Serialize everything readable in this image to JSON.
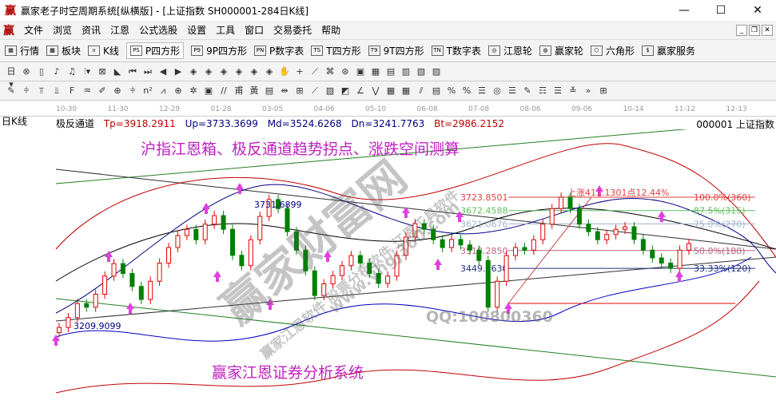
{
  "window": {
    "logo": "赢",
    "title": "赢家老子时空周期系统[纵横版] - [上证指数  SH000001-284日K线]",
    "buttons": [
      "—",
      "☐",
      "✕"
    ]
  },
  "menu": {
    "logo": "赢",
    "items": [
      "文件",
      "浏览",
      "资讯",
      "江恩",
      "公式选股",
      "设置",
      "工具",
      "窗口",
      "交易委托",
      "帮助"
    ],
    "mdi_buttons": [
      "_",
      "❐",
      "✕"
    ]
  },
  "toolbar1": [
    {
      "icon": "grid-icon",
      "glyph": "▦",
      "label": "行情"
    },
    {
      "icon": "blocks-icon",
      "glyph": "▩",
      "label": "板块"
    },
    {
      "icon": "candles-icon",
      "glyph": "ıı",
      "label": "K线"
    },
    {
      "icon": "ps-icon",
      "glyph": "PS",
      "label": "P四方形",
      "selected": true
    },
    {
      "icon": "p9-icon",
      "glyph": "P9",
      "label": "9P四方形"
    },
    {
      "icon": "pn-icon",
      "glyph": "PN",
      "label": "P数字表"
    },
    {
      "icon": "ts-icon",
      "glyph": "TS",
      "label": "T四方形"
    },
    {
      "icon": "t9-icon",
      "glyph": "T9",
      "label": "9T四方形"
    },
    {
      "icon": "tn-icon",
      "glyph": "TN",
      "label": "T数字表"
    },
    {
      "icon": "gann-wheel-icon",
      "glyph": "◎",
      "label": "江恩轮"
    },
    {
      "icon": "win-wheel-icon",
      "glyph": "◍",
      "label": "赢家轮"
    },
    {
      "icon": "hexagon-icon",
      "glyph": "⬡",
      "label": "六角形"
    },
    {
      "icon": "dollar-icon",
      "glyph": "$",
      "label": "赢家服务"
    }
  ],
  "toolbar2": [
    "日▾",
    "⊗",
    "▯",
    "♪",
    "♫",
    "⫶▾",
    "⊠",
    "◣",
    "⏮",
    "⏭",
    "◀",
    "▶",
    "◈",
    "◈",
    "◈",
    "◈",
    "◈",
    "◈",
    "✋",
    "+",
    "⟋",
    "⌘",
    "⊛",
    "▣",
    "▦",
    "▤",
    "▥",
    "▧",
    "▨"
  ],
  "toolbar3": [
    "✎",
    "⫩",
    "⫪",
    "⫫",
    "F",
    "♒",
    "✐",
    "⊕",
    "⫩",
    "n²",
    "⩘",
    "⊕",
    "✲",
    "▣",
    "//",
    "甫",
    "黃",
    "▤",
    "⇹",
    "⊞",
    "⟋",
    "▨",
    "◩",
    "∠",
    "⋁",
    "▦",
    "▦",
    "⫽",
    "▤",
    "%",
    "%",
    "☰",
    "◎",
    "☰",
    "✎",
    "☶",
    "☰",
    "≚",
    "»",
    "⊞"
  ],
  "dates": [
    "10-30",
    "11-30",
    "12-29",
    "01-28",
    "03-05",
    "04-06",
    "05-10",
    "06-08",
    "07-08",
    "08-06",
    "09-06",
    "10-14",
    "11-12",
    "12-13"
  ],
  "chart_header": {
    "period": "日K线",
    "indicator": "极反通道",
    "tp": "Tp=3918.2911",
    "up": "Up=3733.3699",
    "md": "Md=3524.6268",
    "dn": "Dn=3241.7763",
    "bt": "Bt=2986.2152",
    "code": "000001  上证指数"
  },
  "annotations": {
    "headline": "沪指江恩箱、极反通道趋势拐点、涨跌空间测算",
    "footer": "赢家江恩证券分析系统",
    "rise": "上涨411.1301点12.44%",
    "qq": "QQ:100800360",
    "high_label": "3731.6899",
    "low_label": "3209.9099",
    "watermark": "赢家财富网",
    "watermark2": "赢家江恩软件 股票分析软件 江恩工具软件",
    "watermark3": "www.yhgj360.com"
  },
  "colors": {
    "up": "#e00000",
    "down": "#008000",
    "fib_red": "#e04040",
    "fib_green": "#60c060",
    "fib_blue": "#a0b0d0",
    "arrow": "#e040e0",
    "headline": "#c020c0"
  },
  "chart_data": {
    "type": "candlestick",
    "closes": [
      3222,
      3260,
      3314,
      3300,
      3350,
      3420,
      3468,
      3430,
      3380,
      3330,
      3400,
      3470,
      3530,
      3576,
      3600,
      3560,
      3620,
      3653,
      3600,
      3500,
      3460,
      3560,
      3650,
      3715,
      3680,
      3591,
      3520,
      3440,
      3345,
      3390,
      3422,
      3460,
      3499,
      3470,
      3430,
      3392,
      3420,
      3500,
      3570,
      3622,
      3600,
      3560,
      3530,
      3561,
      3540,
      3520,
      3480,
      3300,
      3400,
      3499,
      3530,
      3520,
      3560,
      3620,
      3680,
      3724,
      3680,
      3620,
      3591,
      3560,
      3580,
      3600,
      3610,
      3561,
      3520,
      3490,
      3470,
      3450,
      3520,
      3545
    ],
    "fib_levels": [
      {
        "price": "3723.8501",
        "label": "100.0%(360)",
        "color": "#e04040"
      },
      {
        "price": "3672.4588",
        "label": "87.5%(315)",
        "color": "#60c060"
      },
      {
        "price": "3621.0676",
        "label": "75.0%(270)",
        "color": "#a0b0d0"
      },
      {
        "price": "3518.2850",
        "label": "50.0%(180)",
        "color": "#c06080"
      },
      {
        "price": "3449.7630",
        "label": "33.33%(120)",
        "color": "#203080"
      }
    ],
    "ylim": [
      2900,
      3950
    ]
  }
}
